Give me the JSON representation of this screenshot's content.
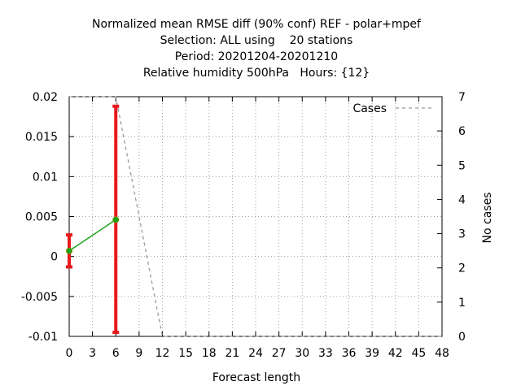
{
  "chart_data": {
    "type": "line",
    "title_lines": [
      "Normalized mean RMSE diff (90% conf) REF - polar+mpef",
      "Selection: ALL using    20 stations",
      "Period: 20201204-20201210",
      "Relative humidity 500hPa   Hours: {12}"
    ],
    "xlabel": "Forecast length",
    "ylabel": "",
    "y2label": "No cases",
    "xlim": [
      0,
      48
    ],
    "ylim": [
      -0.01,
      0.02
    ],
    "y2lim": [
      0,
      7
    ],
    "x_ticks": [
      0,
      3,
      6,
      9,
      12,
      15,
      18,
      21,
      24,
      27,
      30,
      33,
      36,
      39,
      42,
      45,
      48
    ],
    "y_ticks": [
      "-0.01",
      "-0.005",
      "0",
      "0.005",
      "0.01",
      "0.015",
      "0.02"
    ],
    "y_tick_values": [
      -0.01,
      -0.005,
      0,
      0.005,
      0.01,
      0.015,
      0.02
    ],
    "y2_ticks": [
      0,
      1,
      2,
      3,
      4,
      5,
      6,
      7
    ],
    "grid": true,
    "legend_position": "top-right",
    "series": [
      {
        "name": "",
        "kind": "line",
        "color": "#1aa31a",
        "x": [
          0,
          6
        ],
        "y": [
          0.0007,
          0.0046
        ]
      },
      {
        "name": "",
        "kind": "errorbar",
        "color": "#e8191c",
        "x": [
          0,
          6
        ],
        "low": [
          -0.0013,
          -0.0095
        ],
        "high": [
          0.0027,
          0.0188
        ]
      },
      {
        "name": "Cases",
        "kind": "dashed-line",
        "axis": "right",
        "color": "#999999",
        "x": [
          0,
          6,
          12,
          48
        ],
        "y": [
          7,
          7,
          0,
          0
        ]
      }
    ]
  }
}
